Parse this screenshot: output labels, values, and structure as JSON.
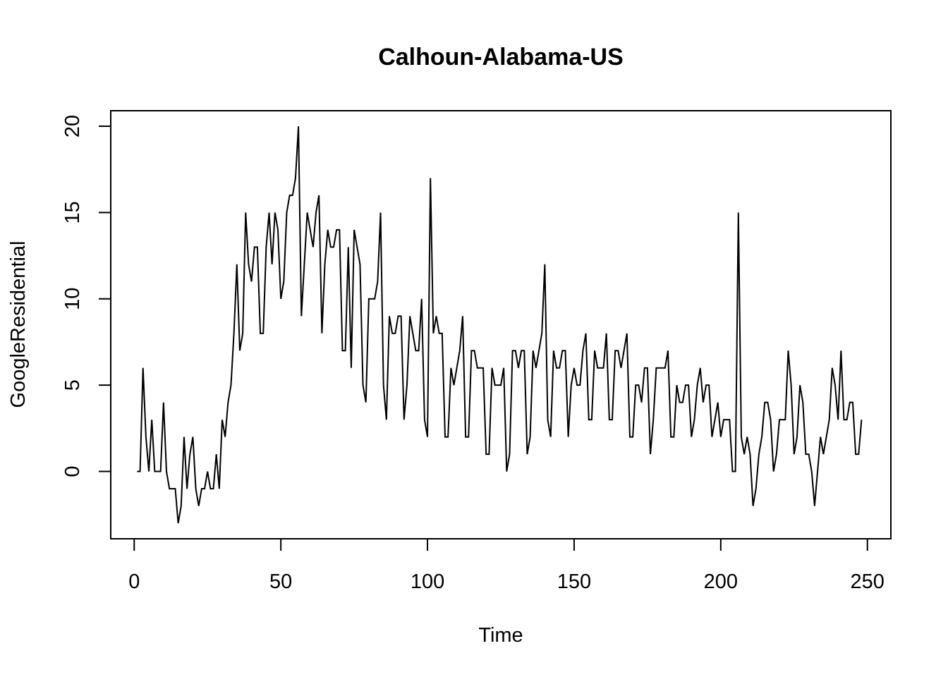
{
  "chart_data": {
    "type": "line",
    "title": "Calhoun-Alabama-US",
    "xlabel": "Time",
    "ylabel": "GoogleResidential",
    "xlim": [
      -8,
      258
    ],
    "ylim": [
      -3.9,
      20.9
    ],
    "xticks": [
      0,
      50,
      100,
      150,
      200,
      250
    ],
    "yticks": [
      0,
      5,
      10,
      15,
      20
    ],
    "grid": false,
    "legend": "none",
    "line_color": "#000000",
    "series": [
      {
        "x": [
          1,
          2,
          3,
          4,
          5,
          6,
          7,
          8,
          9,
          10,
          11,
          12,
          13,
          14,
          15,
          16,
          17,
          18,
          19,
          20,
          21,
          22,
          23,
          24,
          25,
          26,
          27,
          28,
          29,
          30,
          31,
          32,
          33,
          34,
          35,
          36,
          37,
          38,
          39,
          40,
          41,
          42,
          43,
          44,
          45,
          46,
          47,
          48,
          49,
          50,
          51,
          52,
          53,
          54,
          55,
          56,
          57,
          58,
          59,
          60,
          61,
          62,
          63,
          64,
          65,
          66,
          67,
          68,
          69,
          70,
          71,
          72,
          73,
          74,
          75,
          76,
          77,
          78,
          79,
          80,
          81,
          82,
          83,
          84,
          85,
          86,
          87,
          88,
          89,
          90,
          91,
          92,
          93,
          94,
          95,
          96,
          97,
          98,
          99,
          100,
          101,
          102,
          103,
          104,
          105,
          106,
          107,
          108,
          109,
          110,
          111,
          112,
          113,
          114,
          115,
          116,
          117,
          118,
          119,
          120,
          121,
          122,
          123,
          124,
          125,
          126,
          127,
          128,
          129,
          130,
          131,
          132,
          133,
          134,
          135,
          136,
          137,
          138,
          139,
          140,
          141,
          142,
          143,
          144,
          145,
          146,
          147,
          148,
          149,
          150,
          151,
          152,
          153,
          154,
          155,
          156,
          157,
          158,
          159,
          160,
          161,
          162,
          163,
          164,
          165,
          166,
          167,
          168,
          169,
          170,
          171,
          172,
          173,
          174,
          175,
          176,
          177,
          178,
          179,
          180,
          181,
          182,
          183,
          184,
          185,
          186,
          187,
          188,
          189,
          190,
          191,
          192,
          193,
          194,
          195,
          196,
          197,
          198,
          199,
          200,
          201,
          202,
          203,
          204,
          205,
          206,
          207,
          208,
          209,
          210,
          211,
          212,
          213,
          214,
          215,
          216,
          217,
          218,
          219,
          220,
          221,
          222,
          223,
          224,
          225,
          226,
          227,
          228,
          229,
          230,
          231,
          232,
          233,
          234,
          235,
          236,
          237,
          238,
          239,
          240,
          241,
          242,
          243,
          244,
          245,
          246,
          247,
          248
        ],
        "values": [
          0,
          0,
          6,
          2,
          0,
          3,
          0,
          0,
          0,
          4,
          0,
          -1,
          -1,
          -1,
          -3,
          -2,
          2,
          -1,
          1,
          2,
          -1,
          -2,
          -1,
          -1,
          0,
          -1,
          -1,
          1,
          -1,
          3,
          2,
          4,
          5,
          8,
          12,
          7,
          8,
          15,
          12,
          11,
          13,
          13,
          8,
          8,
          13,
          15,
          12,
          15,
          14,
          10,
          11,
          15,
          16,
          16,
          17,
          20,
          9,
          12,
          15,
          14,
          13,
          15,
          16,
          8,
          12,
          14,
          13,
          13,
          14,
          14,
          7,
          7,
          13,
          6,
          14,
          13,
          12,
          5,
          4,
          10,
          10,
          10,
          11,
          15,
          5,
          3,
          9,
          8,
          8,
          9,
          9,
          3,
          5,
          9,
          8,
          7,
          7,
          10,
          3,
          2,
          17,
          8,
          9,
          8,
          8,
          2,
          2,
          6,
          5,
          6,
          7,
          9,
          2,
          2,
          7,
          7,
          6,
          6,
          6,
          1,
          1,
          6,
          5,
          5,
          5,
          6,
          0,
          1,
          7,
          7,
          6,
          7,
          7,
          1,
          2,
          7,
          6,
          7,
          8,
          12,
          3,
          2,
          7,
          6,
          6,
          7,
          7,
          2,
          5,
          6,
          5,
          5,
          7,
          8,
          3,
          3,
          7,
          6,
          6,
          6,
          8,
          3,
          3,
          7,
          7,
          6,
          7,
          8,
          2,
          2,
          5,
          5,
          4,
          6,
          6,
          1,
          3,
          6,
          6,
          6,
          6,
          7,
          2,
          2,
          5,
          4,
          4,
          5,
          5,
          2,
          3,
          5,
          6,
          4,
          5,
          5,
          2,
          3,
          4,
          2,
          3,
          3,
          3,
          0,
          0,
          15,
          2,
          1,
          2,
          1,
          -2,
          -1,
          1,
          2,
          4,
          4,
          3,
          0,
          1,
          3,
          3,
          3,
          7,
          5,
          1,
          2,
          5,
          4,
          1,
          1,
          0,
          -2,
          0,
          2,
          1,
          2,
          3,
          6,
          5,
          3,
          7,
          3,
          3,
          4,
          4,
          1,
          1,
          3
        ]
      }
    ]
  }
}
